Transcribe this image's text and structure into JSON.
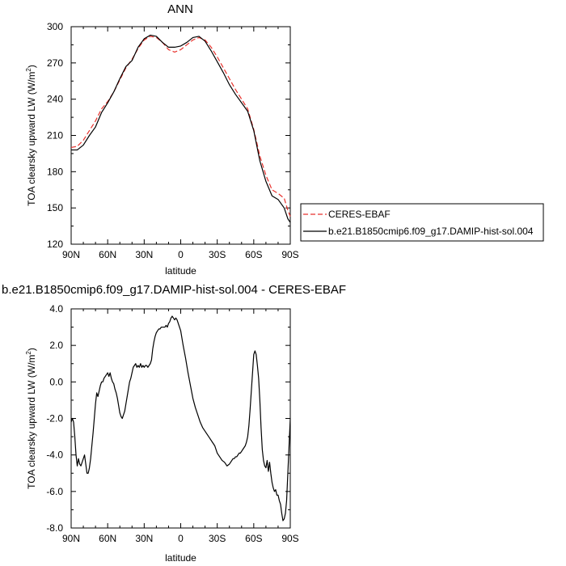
{
  "chart_data": [
    {
      "type": "line",
      "title": "ANN",
      "xlabel": "latitude",
      "ylabel": "TOA clearsky upward LW (W/m",
      "ylabel_superscript": "2",
      "ylabel_close": ")",
      "xlim": [
        90,
        -90
      ],
      "ylim": [
        120,
        300
      ],
      "xticks": [
        {
          "value": 90,
          "label": "90N"
        },
        {
          "value": 60,
          "label": "60N"
        },
        {
          "value": 30,
          "label": "30N"
        },
        {
          "value": 0,
          "label": "0"
        },
        {
          "value": -30,
          "label": "30S"
        },
        {
          "value": -60,
          "label": "60S"
        },
        {
          "value": -90,
          "label": "90S"
        }
      ],
      "yticks": [
        {
          "value": 120,
          "label": "120"
        },
        {
          "value": 150,
          "label": "150"
        },
        {
          "value": 180,
          "label": "180"
        },
        {
          "value": 210,
          "label": "210"
        },
        {
          "value": 240,
          "label": "240"
        },
        {
          "value": 270,
          "label": "270"
        },
        {
          "value": 300,
          "label": "300"
        }
      ],
      "legend_position": "right",
      "series": [
        {
          "name": "CERES-EBAF",
          "color": "#e8322d",
          "dashed": true,
          "x": [
            90,
            85,
            80,
            75,
            70,
            65,
            60,
            55,
            50,
            45,
            40,
            35,
            30,
            25,
            20,
            15,
            10,
            5,
            0,
            -5,
            -10,
            -15,
            -20,
            -25,
            -30,
            -35,
            -40,
            -45,
            -50,
            -55,
            -60,
            -65,
            -70,
            -75,
            -80,
            -85,
            -88,
            -90
          ],
          "y": [
            200,
            201,
            206,
            214,
            222,
            232,
            238,
            246,
            256,
            266,
            273,
            282,
            289,
            292,
            291,
            287,
            281,
            279,
            281,
            285,
            289,
            291,
            289,
            283,
            275,
            266,
            257,
            248,
            240,
            232,
            215,
            193,
            177,
            165,
            162,
            158,
            148,
            143
          ]
        },
        {
          "name": "b.e21.B1850cmip6.f09_g17.DAMIP-hist-sol.004",
          "color": "#000000",
          "dashed": false,
          "x": [
            90,
            85,
            80,
            75,
            70,
            65,
            60,
            55,
            50,
            45,
            40,
            35,
            30,
            25,
            20,
            15,
            10,
            5,
            0,
            -5,
            -10,
            -15,
            -20,
            -25,
            -30,
            -35,
            -40,
            -45,
            -50,
            -55,
            -60,
            -65,
            -70,
            -75,
            -80,
            -85,
            -88,
            -90
          ],
          "y": [
            198,
            198,
            202,
            210,
            217,
            229,
            237,
            246,
            257,
            267,
            272,
            283,
            290,
            293,
            292,
            287,
            283,
            283,
            284,
            287,
            291,
            292,
            288,
            280,
            271,
            262,
            252,
            244,
            237,
            230,
            214,
            189,
            172,
            160,
            157,
            150,
            141,
            138
          ]
        }
      ]
    },
    {
      "type": "line",
      "title": "b.e21.B1850cmip6.f09_g17.DAMIP-hist-sol.004 - CERES-EBAF",
      "xlabel": "latitude",
      "ylabel": "TOA clearsky upward LW (W/m",
      "ylabel_superscript": "2",
      "ylabel_close": ")",
      "xlim": [
        90,
        -90
      ],
      "ylim": [
        -8,
        4
      ],
      "xticks": [
        {
          "value": 90,
          "label": "90N"
        },
        {
          "value": 60,
          "label": "60N"
        },
        {
          "value": 30,
          "label": "30N"
        },
        {
          "value": 0,
          "label": "0"
        },
        {
          "value": -30,
          "label": "30S"
        },
        {
          "value": -60,
          "label": "60S"
        },
        {
          "value": -90,
          "label": "90S"
        }
      ],
      "yticks": [
        {
          "value": 4,
          "label": "4.0"
        },
        {
          "value": 2,
          "label": "2.0"
        },
        {
          "value": 0,
          "label": "0.0"
        },
        {
          "value": -2,
          "label": "-2.0"
        },
        {
          "value": -4,
          "label": "-4.0"
        },
        {
          "value": -6,
          "label": "-6.0"
        },
        {
          "value": -8,
          "label": "-8.0"
        }
      ],
      "series": [
        {
          "color": "#000000",
          "dashed": false,
          "x": [
            90,
            89,
            88,
            87,
            86,
            85,
            84,
            83,
            82,
            81,
            80,
            79,
            78,
            77,
            76,
            75,
            74,
            73,
            72,
            71,
            70,
            69,
            68,
            67,
            66,
            65,
            64,
            63,
            62,
            61,
            60,
            59,
            58,
            57,
            56,
            55,
            54,
            53,
            52,
            51,
            50,
            49,
            48,
            47,
            46,
            45,
            44,
            43,
            42,
            41,
            40,
            39,
            38,
            37,
            36,
            35,
            34,
            33,
            32,
            31,
            30,
            29,
            28,
            27,
            26,
            25,
            24,
            23,
            22,
            21,
            20,
            19,
            18,
            17,
            16,
            15,
            14,
            13,
            12,
            11,
            10,
            9,
            8,
            7,
            6,
            5,
            4,
            3,
            2,
            1,
            0,
            -2,
            -4,
            -6,
            -8,
            -10,
            -12,
            -14,
            -16,
            -18,
            -20,
            -22,
            -24,
            -26,
            -28,
            -30,
            -32,
            -34,
            -36,
            -38,
            -40,
            -41,
            -42,
            -43,
            -44,
            -45,
            -46,
            -47,
            -48,
            -49,
            -50,
            -51,
            -52,
            -53,
            -54,
            -55,
            -56,
            -57,
            -58,
            -59,
            -60,
            -61,
            -62,
            -63,
            -64,
            -65,
            -66,
            -67,
            -68,
            -69,
            -70,
            -71,
            -72,
            -73,
            -74,
            -75,
            -76,
            -77,
            -78,
            -79,
            -80,
            -81,
            -82,
            -83,
            -84,
            -85,
            -86,
            -87,
            -88,
            -89,
            -90
          ],
          "y": [
            -2.2,
            -2.0,
            -2.2,
            -3.0,
            -4.0,
            -4.6,
            -4.2,
            -4.5,
            -4.6,
            -4.4,
            -4.2,
            -4.0,
            -4.5,
            -5.0,
            -5.0,
            -4.7,
            -4.2,
            -3.5,
            -2.8,
            -2.0,
            -1.2,
            -0.6,
            -0.8,
            -0.5,
            -0.2,
            0.0,
            0.0,
            0.2,
            0.3,
            0.4,
            0.5,
            0.3,
            0.5,
            0.2,
            0.0,
            -0.1,
            -0.4,
            -0.6,
            -0.9,
            -1.3,
            -1.7,
            -1.9,
            -2.0,
            -1.8,
            -1.6,
            -1.2,
            -0.8,
            -0.4,
            0.0,
            0.2,
            0.5,
            0.8,
            0.9,
            1.0,
            0.8,
            0.9,
            0.8,
            1.0,
            0.8,
            0.9,
            0.8,
            0.9,
            0.9,
            0.8,
            0.9,
            1.0,
            1.2,
            1.8,
            2.2,
            2.5,
            2.7,
            2.8,
            2.9,
            2.9,
            3.0,
            3.0,
            3.0,
            3.0,
            3.1,
            3.0,
            3.2,
            3.3,
            3.5,
            3.6,
            3.5,
            3.4,
            3.5,
            3.4,
            3.2,
            3.0,
            2.8,
            2.0,
            1.3,
            0.5,
            -0.2,
            -0.9,
            -1.4,
            -1.8,
            -2.2,
            -2.5,
            -2.7,
            -2.9,
            -3.1,
            -3.3,
            -3.5,
            -3.9,
            -4.1,
            -4.3,
            -4.4,
            -4.6,
            -4.5,
            -4.4,
            -4.3,
            -4.2,
            -4.2,
            -4.1,
            -4.1,
            -4.0,
            -3.9,
            -3.9,
            -3.8,
            -3.7,
            -3.6,
            -3.5,
            -3.3,
            -3.0,
            -2.4,
            -1.5,
            -0.5,
            0.5,
            1.5,
            1.7,
            1.5,
            0.9,
            0.2,
            -1.0,
            -2.5,
            -3.7,
            -4.3,
            -4.6,
            -4.7,
            -4.3,
            -4.9,
            -4.4,
            -5.0,
            -5.5,
            -5.8,
            -6.0,
            -5.9,
            -6.2,
            -6.2,
            -6.5,
            -6.7,
            -7.2,
            -7.6,
            -7.5,
            -7.2,
            -6.5,
            -5.0,
            -3.5,
            -2.0
          ]
        }
      ]
    }
  ]
}
